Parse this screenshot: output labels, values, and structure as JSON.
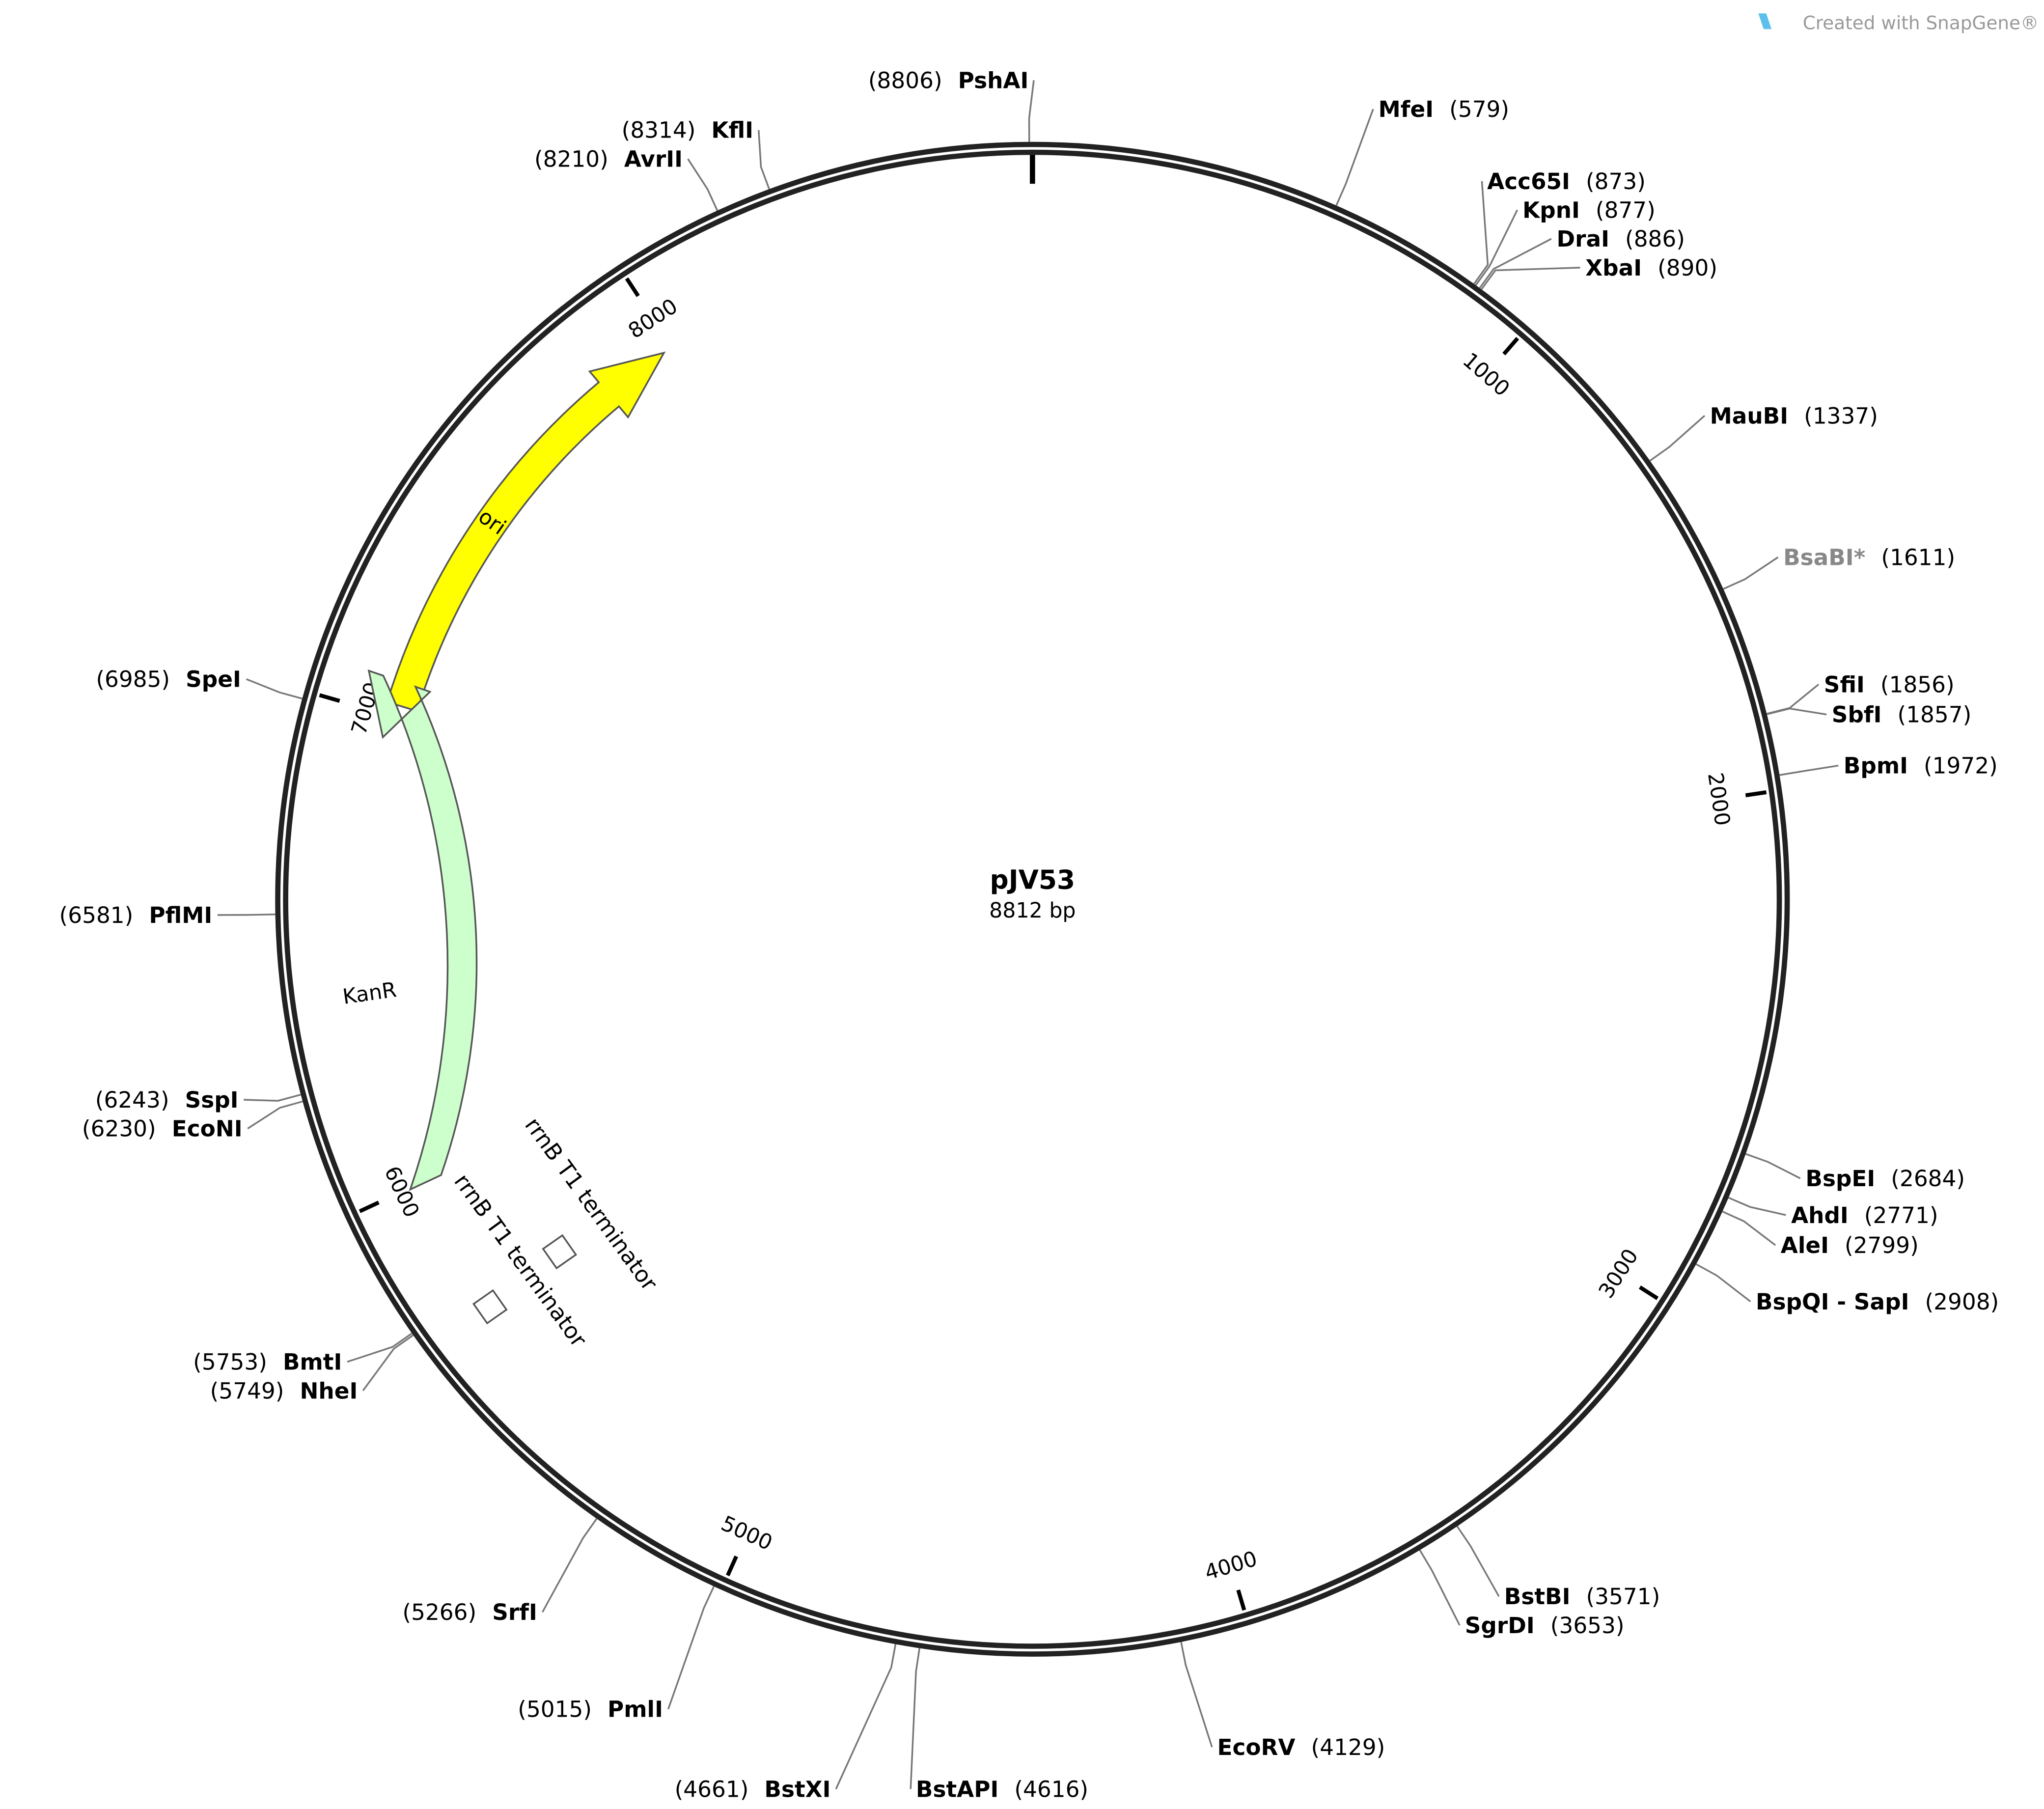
{
  "header": {
    "credit": "Created with SnapGene®"
  },
  "plasmid": {
    "name": "pJV53",
    "size": "8812 bp",
    "length": 8812
  },
  "ticks": [
    1000,
    2000,
    3000,
    4000,
    5000,
    6000,
    7000,
    8000
  ],
  "sites": [
    {
      "name": "PshAI",
      "position": 8806,
      "label": "(8806)"
    },
    {
      "name": "MfeI",
      "position": 579,
      "label": "(579)"
    },
    {
      "name": "Acc65I",
      "position": 873,
      "label": "(873)"
    },
    {
      "name": "KpnI",
      "position": 877,
      "label": "(877)"
    },
    {
      "name": "DraI",
      "position": 886,
      "label": "(886)"
    },
    {
      "name": "XbaI",
      "position": 890,
      "label": "(890)"
    },
    {
      "name": "MauBI",
      "position": 1337,
      "label": "(1337)"
    },
    {
      "name": "BsaBI*",
      "position": 1611,
      "label": "(1611)"
    },
    {
      "name": "SfiI",
      "position": 1856,
      "label": "(1856)"
    },
    {
      "name": "SbfI",
      "position": 1857,
      "label": "(1857)"
    },
    {
      "name": "BpmI",
      "position": 1972,
      "label": "(1972)"
    },
    {
      "name": "BspEI",
      "position": 2684,
      "label": "(2684)"
    },
    {
      "name": "AhdI",
      "position": 2771,
      "label": "(2771)"
    },
    {
      "name": "AleI",
      "position": 2799,
      "label": "(2799)"
    },
    {
      "name": "BspQI - SapI",
      "position": 2908,
      "label": "(2908)"
    },
    {
      "name": "BstBI",
      "position": 3571,
      "label": "(3571)"
    },
    {
      "name": "SgrDI",
      "position": 3653,
      "label": "(3653)"
    },
    {
      "name": "EcoRV",
      "position": 4129,
      "label": "(4129)"
    },
    {
      "name": "BstAPI",
      "position": 4616,
      "label": "(4616)"
    },
    {
      "name": "BstXI",
      "position": 4661,
      "label": "(4661)"
    },
    {
      "name": "PmlI",
      "position": 5015,
      "label": "(5015)"
    },
    {
      "name": "SrfI",
      "position": 5266,
      "label": "(5266)"
    },
    {
      "name": "BmtI",
      "position": 5753,
      "label": "(5753)"
    },
    {
      "name": "NheI",
      "position": 5749,
      "label": "(5749)"
    },
    {
      "name": "SspI",
      "position": 6243,
      "label": "(6243)"
    },
    {
      "name": "EcoNI",
      "position": 6230,
      "label": "(6230)"
    },
    {
      "name": "PflMI",
      "position": 6581,
      "label": "(6581)"
    },
    {
      "name": "SpeI",
      "position": 6985,
      "label": "(6985)"
    },
    {
      "name": "AvrII",
      "position": 8210,
      "label": "(8210)"
    },
    {
      "name": "KflI",
      "position": 8314,
      "label": "(8314)"
    }
  ],
  "features": [
    {
      "name": "ori",
      "color": "#ffff00"
    },
    {
      "name": "KanR",
      "color": "#ccffcc"
    },
    {
      "name": "rrnB T1 terminator"
    },
    {
      "name": "rrnB T1 terminator"
    }
  ]
}
